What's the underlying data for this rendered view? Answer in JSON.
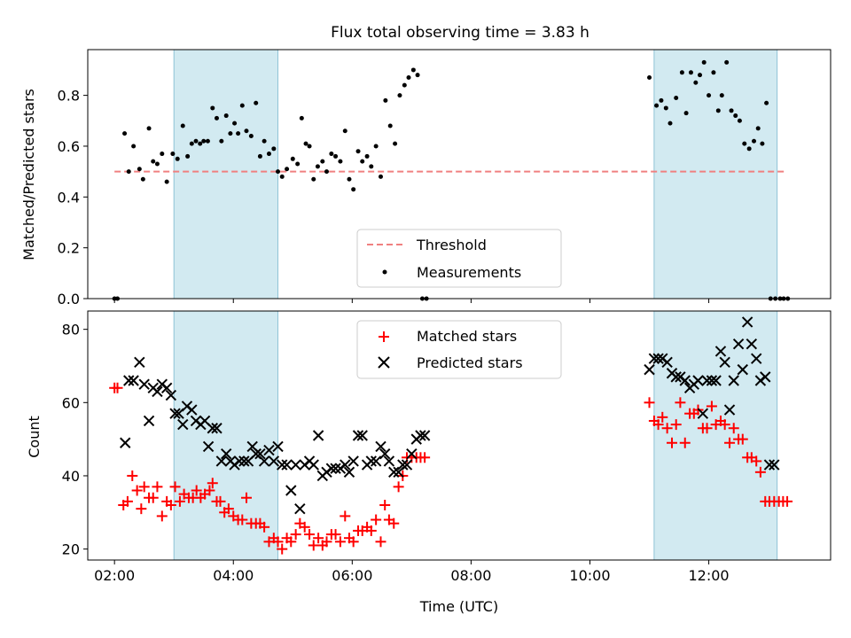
{
  "chart_data": [
    {
      "type": "scatter",
      "title": "Flux total observing time = 3.83 h",
      "xlabel": "",
      "ylabel": "Matched/Predicted stars",
      "xlim": [
        1.55,
        14.05
      ],
      "ylim": [
        0.0,
        0.98
      ],
      "x_ticks": [
        "02:00",
        "04:00",
        "06:00",
        "08:00",
        "10:00",
        "12:00"
      ],
      "x_tick_values": [
        2,
        4,
        6,
        8,
        10,
        12
      ],
      "x_tick_labels_visible": false,
      "y_ticks": [
        0.0,
        0.2,
        0.4,
        0.6,
        0.8
      ],
      "y_tick_labels": [
        "0.0",
        "0.2",
        "0.4",
        "0.6",
        "0.8"
      ],
      "shaded_intervals": [
        [
          3.0,
          4.75
        ],
        [
          11.08,
          13.15
        ]
      ],
      "shade_color": "#add8e6",
      "legend_position": "lower-center",
      "series": [
        {
          "name": "Threshold",
          "kind": "line",
          "style": "dashed",
          "color": "#f08080",
          "x": [
            2.0,
            13.3
          ],
          "y": [
            0.5,
            0.5
          ]
        },
        {
          "name": "Measurements",
          "kind": "scatter",
          "marker": "dot",
          "color": "#000000",
          "x": [
            2.0,
            2.05,
            2.17,
            2.24,
            2.32,
            2.42,
            2.48,
            2.58,
            2.65,
            2.72,
            2.8,
            2.88,
            2.98,
            3.06,
            3.15,
            3.23,
            3.3,
            3.37,
            3.44,
            3.5,
            3.57,
            3.65,
            3.72,
            3.8,
            3.88,
            3.95,
            4.02,
            4.08,
            4.15,
            4.22,
            4.3,
            4.38,
            4.45,
            4.52,
            4.6,
            4.68,
            4.75,
            4.82,
            4.9,
            5.0,
            5.08,
            5.15,
            5.22,
            5.28,
            5.35,
            5.42,
            5.5,
            5.57,
            5.65,
            5.72,
            5.8,
            5.88,
            5.95,
            6.02,
            6.1,
            6.17,
            6.25,
            6.32,
            6.4,
            6.48,
            6.56,
            6.64,
            6.72,
            6.8,
            6.88,
            6.95,
            7.03,
            7.1,
            7.18,
            7.25,
            11.0,
            11.12,
            11.2,
            11.28,
            11.35,
            11.45,
            11.55,
            11.62,
            11.7,
            11.78,
            11.85,
            11.92,
            12.0,
            12.08,
            12.16,
            12.22,
            12.3,
            12.38,
            12.45,
            12.52,
            12.6,
            12.68,
            12.76,
            12.83,
            12.9,
            12.97,
            13.04,
            13.12,
            13.2,
            13.26,
            13.33
          ],
          "y": [
            0.0,
            0.0,
            0.65,
            0.5,
            0.6,
            0.51,
            0.47,
            0.67,
            0.54,
            0.53,
            0.57,
            0.46,
            0.57,
            0.55,
            0.68,
            0.56,
            0.61,
            0.62,
            0.61,
            0.62,
            0.62,
            0.75,
            0.71,
            0.62,
            0.72,
            0.65,
            0.69,
            0.65,
            0.76,
            0.66,
            0.64,
            0.77,
            0.56,
            0.62,
            0.57,
            0.59,
            0.5,
            0.48,
            0.51,
            0.55,
            0.53,
            0.71,
            0.61,
            0.6,
            0.47,
            0.52,
            0.54,
            0.5,
            0.57,
            0.56,
            0.54,
            0.66,
            0.47,
            0.43,
            0.58,
            0.54,
            0.56,
            0.52,
            0.6,
            0.48,
            0.78,
            0.68,
            0.61,
            0.8,
            0.84,
            0.87,
            0.9,
            0.88,
            0.0,
            0.0,
            0.87,
            0.76,
            0.78,
            0.75,
            0.69,
            0.79,
            0.89,
            0.73,
            0.89,
            0.85,
            0.88,
            0.93,
            0.8,
            0.89,
            0.74,
            0.8,
            0.93,
            0.74,
            0.72,
            0.7,
            0.61,
            0.59,
            0.62,
            0.67,
            0.61,
            0.77,
            0.0,
            0.0,
            0.0,
            0.0,
            0.0
          ]
        }
      ]
    },
    {
      "type": "scatter",
      "title": "",
      "xlabel": "Time (UTC)",
      "ylabel": "Count",
      "xlim": [
        1.55,
        14.05
      ],
      "ylim": [
        17,
        85
      ],
      "x_ticks": [
        "02:00",
        "04:00",
        "06:00",
        "08:00",
        "10:00",
        "12:00"
      ],
      "x_tick_values": [
        2,
        4,
        6,
        8,
        10,
        12
      ],
      "y_ticks": [
        20,
        40,
        60,
        80
      ],
      "y_tick_labels": [
        "20",
        "40",
        "60",
        "80"
      ],
      "shaded_intervals": [
        [
          3.0,
          4.75
        ],
        [
          11.08,
          13.15
        ]
      ],
      "shade_color": "#add8e6",
      "legend_position": "upper-center",
      "series": [
        {
          "name": "Matched stars",
          "kind": "scatter",
          "marker": "plus",
          "color": "#ff0000",
          "x": [
            2.0,
            2.05,
            2.15,
            2.22,
            2.3,
            2.38,
            2.45,
            2.5,
            2.58,
            2.65,
            2.72,
            2.8,
            2.88,
            2.95,
            3.02,
            3.1,
            3.17,
            3.25,
            3.32,
            3.38,
            3.45,
            3.52,
            3.6,
            3.65,
            3.72,
            3.78,
            3.85,
            3.92,
            4.0,
            4.08,
            4.15,
            4.22,
            4.3,
            4.38,
            4.45,
            4.52,
            4.6,
            4.68,
            4.75,
            4.82,
            4.9,
            4.97,
            5.05,
            5.12,
            5.2,
            5.28,
            5.35,
            5.43,
            5.5,
            5.57,
            5.65,
            5.72,
            5.8,
            5.88,
            5.95,
            6.02,
            6.1,
            6.17,
            6.25,
            6.32,
            6.4,
            6.48,
            6.55,
            6.62,
            6.7,
            6.78,
            6.85,
            6.92,
            7.0,
            7.08,
            7.15,
            7.22,
            11.0,
            11.08,
            11.15,
            11.22,
            11.3,
            11.38,
            11.45,
            11.52,
            11.6,
            11.68,
            11.75,
            11.82,
            11.9,
            11.97,
            12.05,
            12.12,
            12.2,
            12.27,
            12.35,
            12.42,
            12.5,
            12.57,
            12.65,
            12.72,
            12.8,
            12.87,
            12.95,
            13.02,
            13.1,
            13.18,
            13.25,
            13.32
          ],
          "y": [
            64,
            64,
            32,
            33,
            40,
            36,
            31,
            37,
            34,
            34,
            37,
            29,
            33,
            32,
            37,
            33,
            35,
            34,
            34,
            36,
            34,
            35,
            36,
            38,
            33,
            33,
            30,
            31,
            29,
            28,
            28,
            34,
            27,
            27,
            27,
            26,
            22,
            23,
            22,
            20,
            23,
            22,
            24,
            27,
            26,
            24,
            21,
            23,
            21,
            22,
            24,
            24,
            22,
            29,
            23,
            22,
            25,
            25,
            26,
            25,
            28,
            22,
            32,
            28,
            27,
            37,
            40,
            45,
            45,
            45,
            45,
            45,
            60,
            55,
            54,
            56,
            53,
            49,
            54,
            60,
            49,
            57,
            57,
            58,
            53,
            53,
            59,
            54,
            55,
            54,
            49,
            53,
            50,
            50,
            45,
            45,
            44,
            41,
            33,
            33,
            33,
            33,
            33,
            33
          ]
        },
        {
          "name": "Predicted stars",
          "kind": "scatter",
          "marker": "cross",
          "color": "#000000",
          "x": [
            2.18,
            2.24,
            2.32,
            2.42,
            2.5,
            2.58,
            2.65,
            2.72,
            2.8,
            2.88,
            2.95,
            3.02,
            3.08,
            3.15,
            3.22,
            3.3,
            3.37,
            3.45,
            3.52,
            3.58,
            3.65,
            3.72,
            3.8,
            3.88,
            3.95,
            4.02,
            4.1,
            4.18,
            4.25,
            4.32,
            4.38,
            4.45,
            4.52,
            4.6,
            4.68,
            4.75,
            4.82,
            4.9,
            4.97,
            5.05,
            5.12,
            5.2,
            5.28,
            5.35,
            5.43,
            5.5,
            5.57,
            5.65,
            5.72,
            5.8,
            5.88,
            5.95,
            6.02,
            6.1,
            6.17,
            6.25,
            6.32,
            6.4,
            6.48,
            6.55,
            6.62,
            6.7,
            6.78,
            6.85,
            6.92,
            7.0,
            7.08,
            7.15,
            7.22,
            11.0,
            11.08,
            11.15,
            11.22,
            11.3,
            11.38,
            11.45,
            11.52,
            11.6,
            11.68,
            11.75,
            11.82,
            11.9,
            11.97,
            12.05,
            12.12,
            12.2,
            12.27,
            12.35,
            12.42,
            12.5,
            12.57,
            12.65,
            12.72,
            12.8,
            12.87,
            12.95,
            13.02,
            13.1
          ],
          "y": [
            49,
            66,
            66,
            71,
            65,
            55,
            64,
            63,
            65,
            64,
            62,
            57,
            57,
            54,
            59,
            58,
            55,
            54,
            55,
            48,
            53,
            53,
            44,
            46,
            44,
            43,
            44,
            44,
            44,
            48,
            46,
            46,
            44,
            47,
            44,
            48,
            43,
            43,
            36,
            43,
            31,
            43,
            44,
            43,
            51,
            40,
            41,
            42,
            42,
            42,
            43,
            41,
            44,
            51,
            51,
            43,
            44,
            44,
            48,
            46,
            44,
            41,
            41,
            43,
            43,
            46,
            50,
            51,
            51,
            69,
            72,
            72,
            72,
            71,
            68,
            67,
            67,
            66,
            64,
            65,
            66,
            57,
            66,
            66,
            66,
            74,
            71,
            58,
            66,
            76,
            69,
            82,
            76,
            72,
            66,
            67,
            43,
            43
          ]
        }
      ]
    }
  ]
}
